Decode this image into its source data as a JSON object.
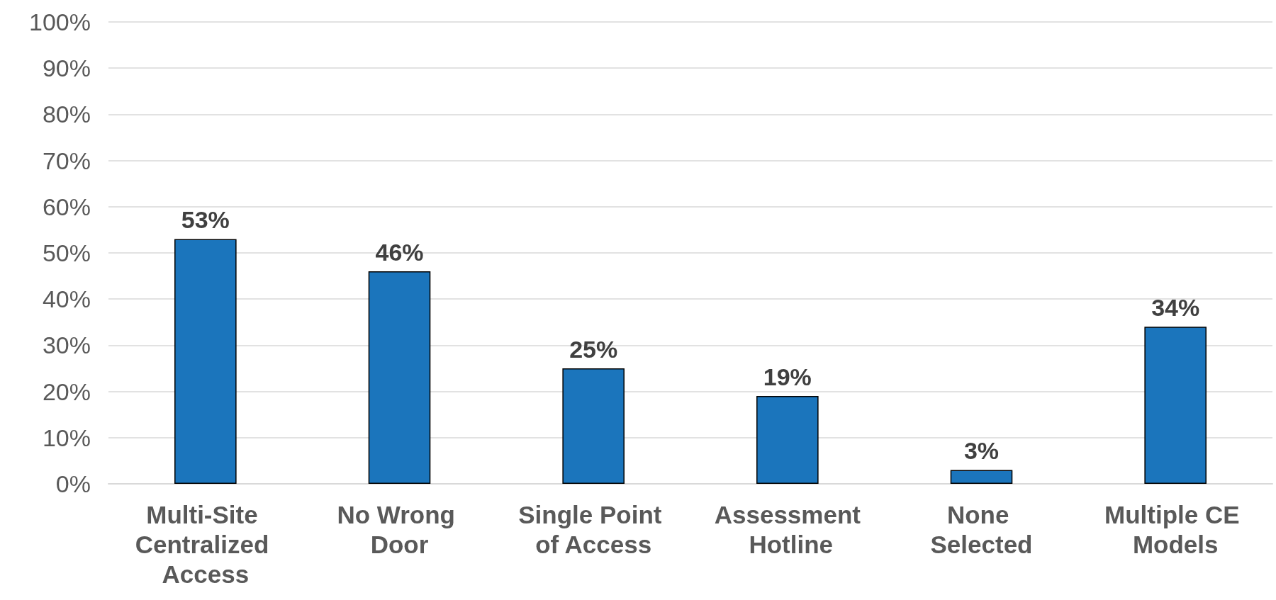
{
  "chart_data": {
    "type": "bar",
    "categories": [
      "Multi-Site Centralized Access",
      "No Wrong Door",
      "Single Point of Access",
      "Assessment Hotline",
      "None Selected",
      "Multiple CE Models"
    ],
    "values": [
      53,
      46,
      25,
      19,
      3,
      34
    ],
    "value_labels": [
      "53%",
      "46%",
      "25%",
      "19%",
      "3%",
      "34%"
    ],
    "color": "#1b75bc",
    "ylim": [
      0,
      100
    ],
    "yticks": [
      {
        "value": 0,
        "label": "0%"
      },
      {
        "value": 10,
        "label": "10%"
      },
      {
        "value": 20,
        "label": "20%"
      },
      {
        "value": 30,
        "label": "30%"
      },
      {
        "value": 40,
        "label": "40%"
      },
      {
        "value": 50,
        "label": "50%"
      },
      {
        "value": 60,
        "label": "60%"
      },
      {
        "value": 70,
        "label": "70%"
      },
      {
        "value": 80,
        "label": "80%"
      },
      {
        "value": 90,
        "label": "90%"
      },
      {
        "value": 100,
        "label": "100%"
      }
    ],
    "grid": "y"
  }
}
